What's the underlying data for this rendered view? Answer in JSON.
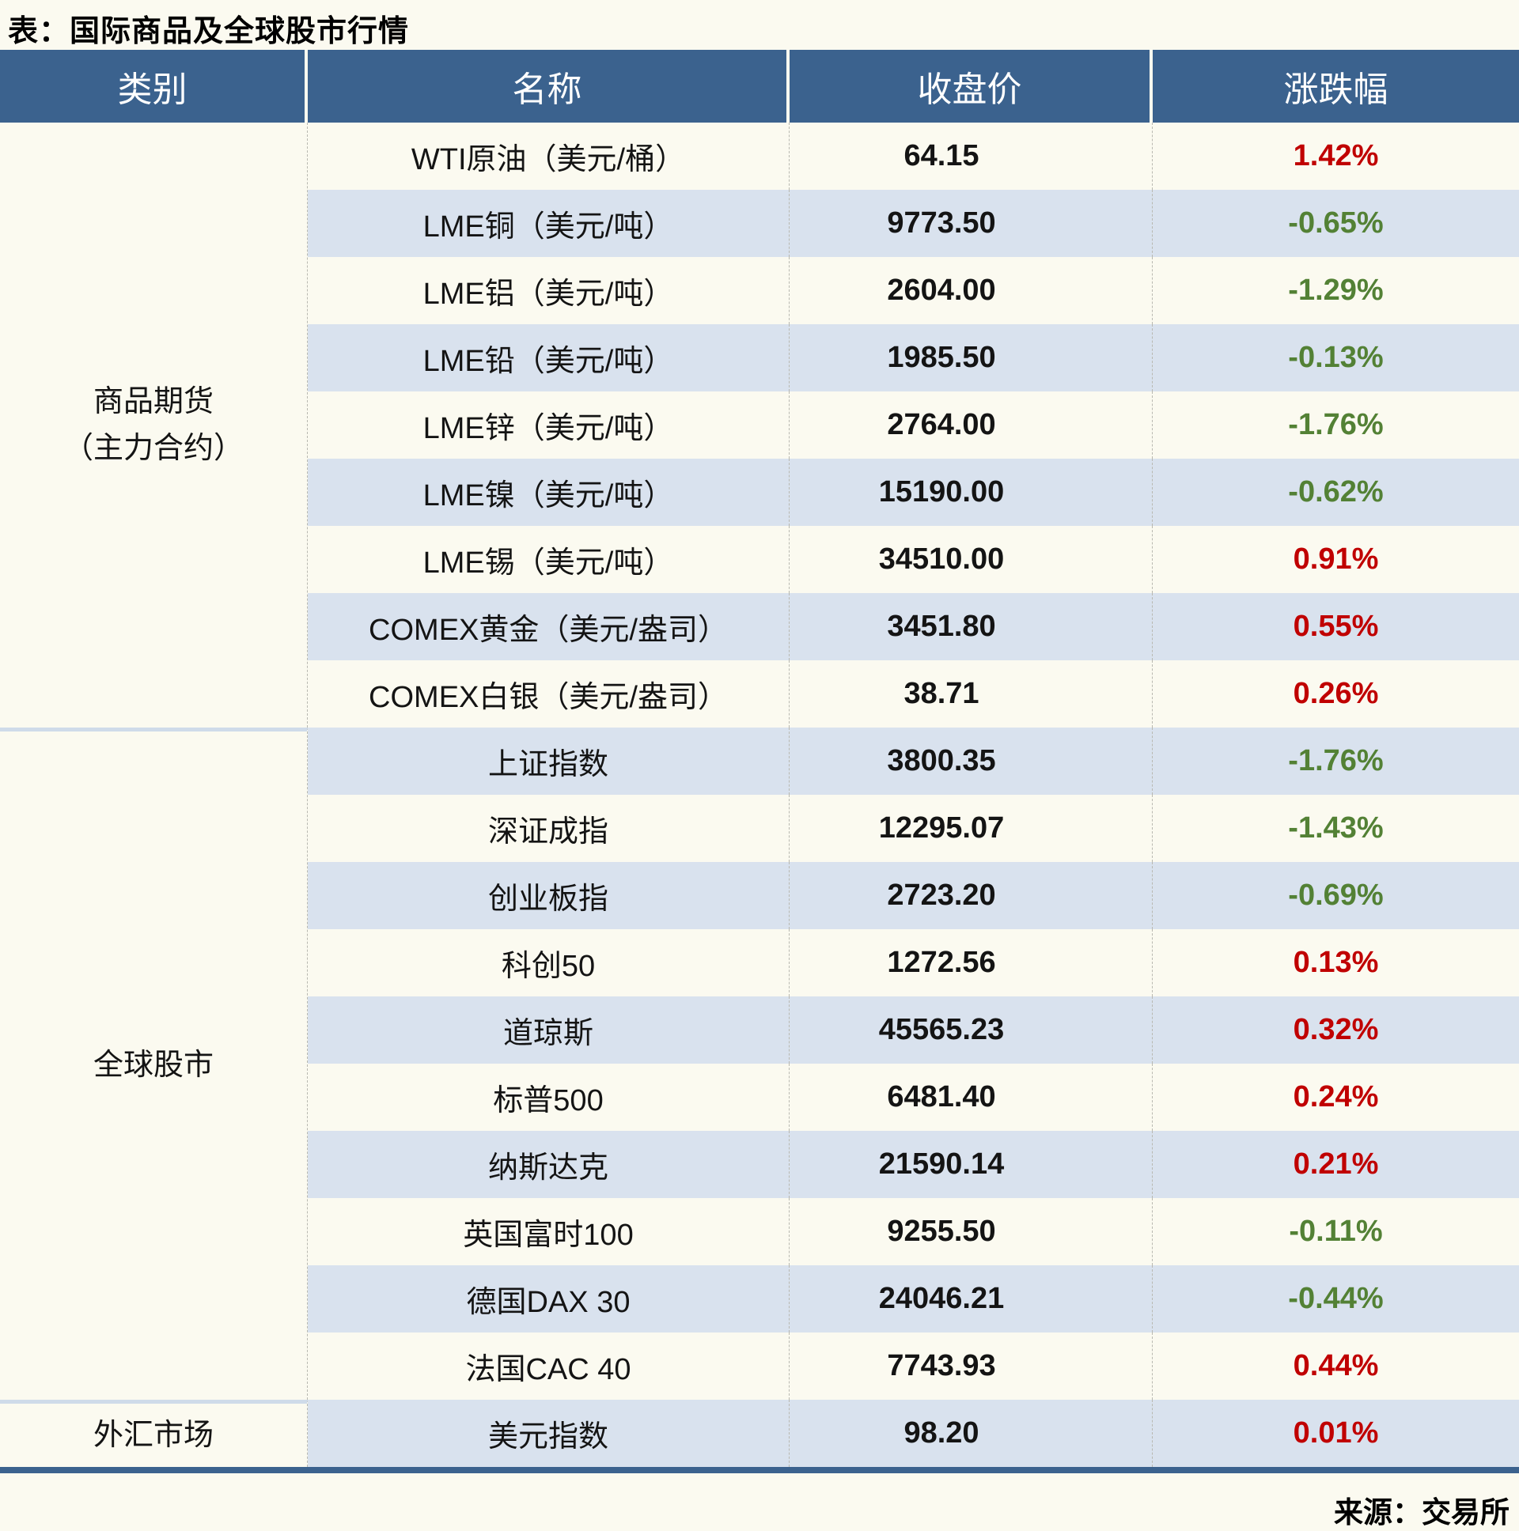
{
  "colors": {
    "header_bg": "#3b628e",
    "stripe_bg": "#d9e2ee",
    "page_bg": "#fbfaf0",
    "up": "#c00000",
    "down": "#538135",
    "group_divider": "#cfdbe9"
  },
  "chart_data": {
    "type": "table",
    "title": "表：国际商品及全球股市行情",
    "columns": [
      "类别",
      "名称",
      "收盘价",
      "涨跌幅"
    ],
    "groups": [
      {
        "lines": [
          "商品期货",
          "（主力合约）"
        ],
        "rows": [
          {
            "name": "WTI原油（美元/桶）",
            "close": "64.15",
            "change": "1.42%",
            "direction": "up"
          },
          {
            "name": "LME铜（美元/吨）",
            "close": "9773.50",
            "change": "-0.65%",
            "direction": "down"
          },
          {
            "name": "LME铝（美元/吨）",
            "close": "2604.00",
            "change": "-1.29%",
            "direction": "down"
          },
          {
            "name": "LME铅（美元/吨）",
            "close": "1985.50",
            "change": "-0.13%",
            "direction": "down"
          },
          {
            "name": "LME锌（美元/吨）",
            "close": "2764.00",
            "change": "-1.76%",
            "direction": "down"
          },
          {
            "name": "LME镍（美元/吨）",
            "close": "15190.00",
            "change": "-0.62%",
            "direction": "down"
          },
          {
            "name": "LME锡（美元/吨）",
            "close": "34510.00",
            "change": "0.91%",
            "direction": "up"
          },
          {
            "name": "COMEX黄金（美元/盎司）",
            "close": "3451.80",
            "change": "0.55%",
            "direction": "up"
          },
          {
            "name": "COMEX白银（美元/盎司）",
            "close": "38.71",
            "change": "0.26%",
            "direction": "up"
          }
        ]
      },
      {
        "lines": [
          "全球股市"
        ],
        "rows": [
          {
            "name": "上证指数",
            "close": "3800.35",
            "change": "-1.76%",
            "direction": "down"
          },
          {
            "name": "深证成指",
            "close": "12295.07",
            "change": "-1.43%",
            "direction": "down"
          },
          {
            "name": "创业板指",
            "close": "2723.20",
            "change": "-0.69%",
            "direction": "down"
          },
          {
            "name": "科创50",
            "close": "1272.56",
            "change": "0.13%",
            "direction": "up"
          },
          {
            "name": "道琼斯",
            "close": "45565.23",
            "change": "0.32%",
            "direction": "up"
          },
          {
            "name": "标普500",
            "close": "6481.40",
            "change": "0.24%",
            "direction": "up"
          },
          {
            "name": "纳斯达克",
            "close": "21590.14",
            "change": "0.21%",
            "direction": "up"
          },
          {
            "name": "英国富时100",
            "close": "9255.50",
            "change": "-0.11%",
            "direction": "down"
          },
          {
            "name": "德国DAX 30",
            "close": "24046.21",
            "change": "-0.44%",
            "direction": "down"
          },
          {
            "name": "法国CAC 40",
            "close": "7743.93",
            "change": "0.44%",
            "direction": "up"
          }
        ]
      },
      {
        "lines": [
          "外汇市场"
        ],
        "rows": [
          {
            "name": "美元指数",
            "close": "98.20",
            "change": "0.01%",
            "direction": "up"
          }
        ]
      }
    ],
    "source": "来源：交易所"
  }
}
